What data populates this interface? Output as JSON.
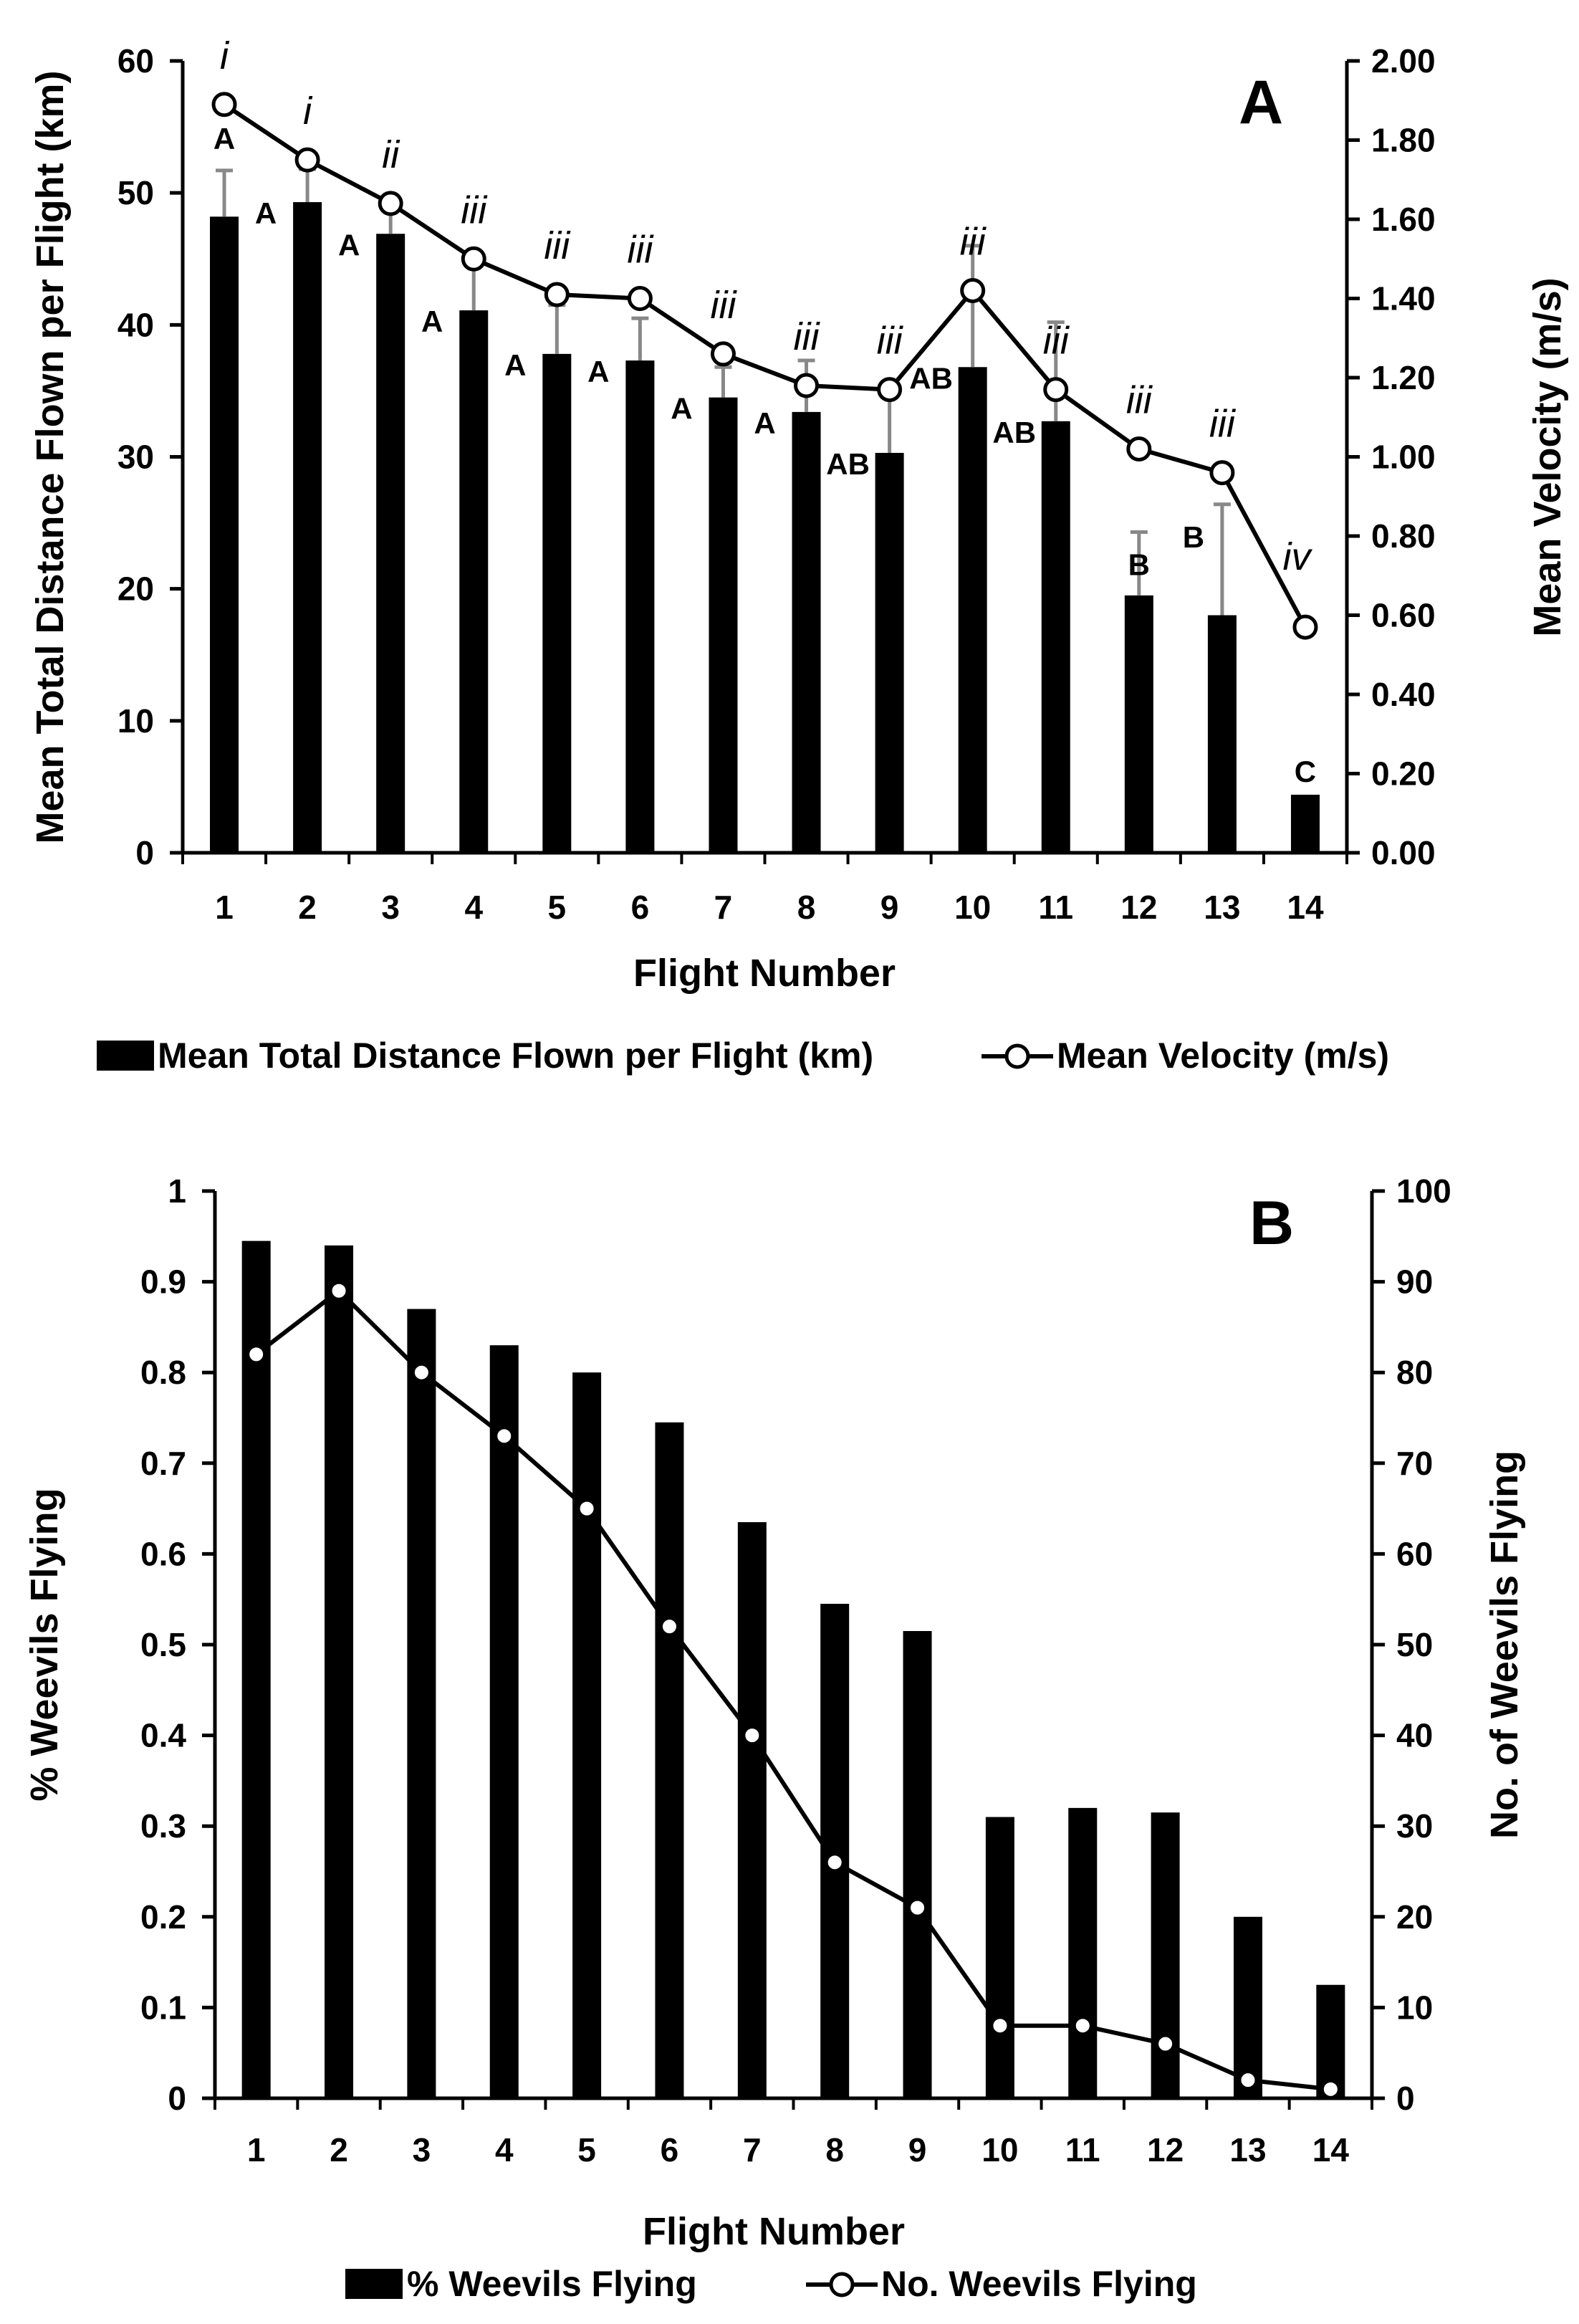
{
  "chart_data": [
    {
      "panel": "A",
      "type": "bar+line",
      "xlabel": "Flight Number",
      "ylabel_left": "Mean Total Distance Flown per Flight (km)",
      "ylabel_right": "Mean Velocity (m/s)",
      "categories": [
        "1",
        "2",
        "3",
        "4",
        "5",
        "6",
        "7",
        "8",
        "9",
        "10",
        "11",
        "12",
        "13",
        "14"
      ],
      "left_ticks": [
        "0",
        "10",
        "20",
        "30",
        "40",
        "50",
        "60"
      ],
      "right_ticks": [
        "0.00",
        "0.20",
        "0.40",
        "0.60",
        "0.80",
        "1.00",
        "1.20",
        "1.40",
        "1.60",
        "1.80",
        "2.00"
      ],
      "ylim_left": [
        0,
        60
      ],
      "ylim_right": [
        0,
        2.0
      ],
      "series": [
        {
          "name": "Mean Total Distance Flown per Flight (km)",
          "kind": "bar",
          "axis": "left",
          "values": [
            48.2,
            49.3,
            46.9,
            41.1,
            37.8,
            37.3,
            34.5,
            33.4,
            30.3,
            36.8,
            32.7,
            19.5,
            18.0,
            4.4
          ],
          "error": [
            3.5,
            2.5,
            1.9,
            3.8,
            3.7,
            3.2,
            2.3,
            3.9,
            4.5,
            9.2,
            7.5,
            4.8,
            8.4,
            0.0
          ],
          "labels": [
            "A",
            "A",
            "A",
            "A",
            "A",
            "A",
            "A",
            "A",
            "AB",
            "AB",
            "AB",
            "B",
            "B",
            "C"
          ]
        },
        {
          "name": "Mean Velocity (m/s)",
          "kind": "line",
          "axis": "right",
          "values": [
            1.89,
            1.75,
            1.64,
            1.5,
            1.41,
            1.4,
            1.26,
            1.18,
            1.17,
            1.42,
            1.17,
            1.02,
            0.96,
            0.57
          ],
          "labels": [
            "i",
            "i",
            "ii",
            "iii",
            "iii",
            "iii",
            "iii",
            "iii",
            "iii",
            "iii",
            "iii",
            "iii",
            "iii",
            "iv"
          ]
        }
      ],
      "legend": [
        "Mean Total Distance Flown per Flight (km)",
        "Mean Velocity (m/s)"
      ]
    },
    {
      "panel": "B",
      "type": "bar+line",
      "xlabel": "Flight Number",
      "ylabel_left": "% Weevils Flying",
      "ylabel_right": "No. of Weevils Flying",
      "categories": [
        "1",
        "2",
        "3",
        "4",
        "5",
        "6",
        "7",
        "8",
        "9",
        "10",
        "11",
        "12",
        "13",
        "14"
      ],
      "left_ticks": [
        "0",
        "0.1",
        "0.2",
        "0.3",
        "0.4",
        "0.5",
        "0.6",
        "0.7",
        "0.8",
        "0.9",
        "1"
      ],
      "right_ticks": [
        "0",
        "10",
        "20",
        "30",
        "40",
        "50",
        "60",
        "70",
        "80",
        "90",
        "100"
      ],
      "ylim_left": [
        0,
        1
      ],
      "ylim_right": [
        0,
        100
      ],
      "series": [
        {
          "name": "% Weevils Flying",
          "kind": "bar",
          "axis": "left",
          "values": [
            0.945,
            0.94,
            0.87,
            0.83,
            0.8,
            0.745,
            0.635,
            0.545,
            0.515,
            0.31,
            0.32,
            0.315,
            0.2,
            0.125
          ]
        },
        {
          "name": "No. Weevils Flying",
          "kind": "line",
          "axis": "right",
          "values": [
            82,
            89,
            80,
            73,
            65,
            52,
            40,
            26,
            21,
            8,
            8,
            6,
            2,
            1
          ]
        }
      ],
      "legend": [
        "% Weevils Flying",
        "No. Weevils Flying"
      ]
    }
  ]
}
